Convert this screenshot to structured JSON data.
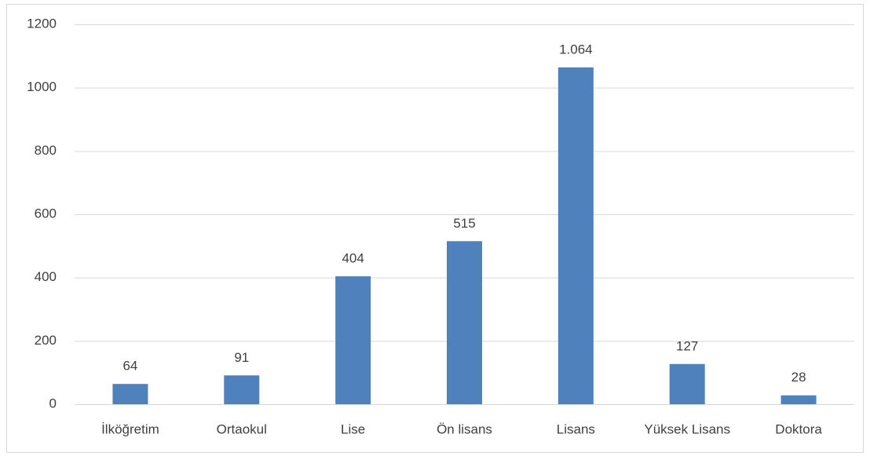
{
  "chart_data": {
    "type": "bar",
    "categories": [
      "İlköğretim",
      "Ortaokul",
      "Lise",
      "Ön lisans",
      "Lisans",
      "Yüksek Lisans",
      "Doktora"
    ],
    "values": [
      64,
      91,
      404,
      515,
      1064,
      127,
      28
    ],
    "value_labels": [
      "64",
      "91",
      "404",
      "515",
      "1.064",
      "127",
      "28"
    ],
    "color": "#4f81bd",
    "ylim": [
      0,
      1200
    ],
    "yticks": [
      0,
      200,
      400,
      600,
      800,
      1000,
      1200
    ],
    "grid": true
  }
}
